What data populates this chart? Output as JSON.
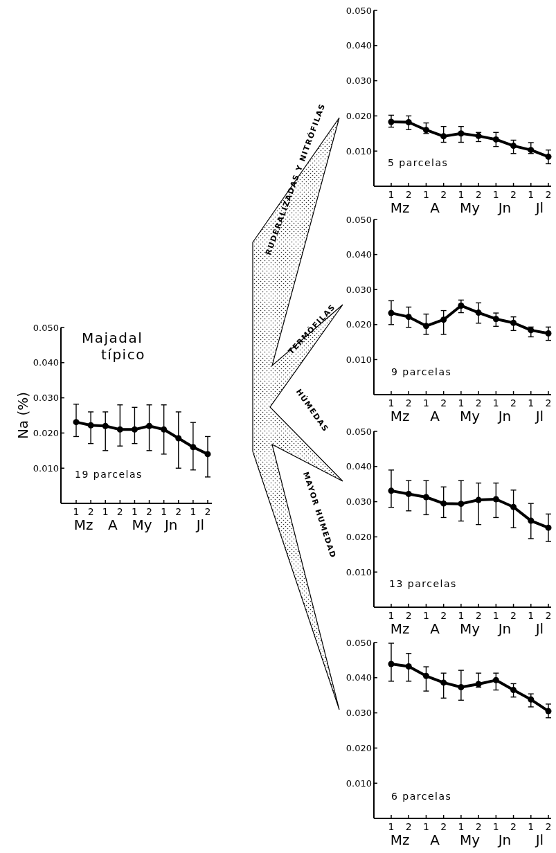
{
  "chart_data": [
    {
      "type": "line",
      "title": "Majadal típico",
      "ylabel": "Na (%)",
      "categories": [
        "1",
        "2",
        "1",
        "2",
        "1",
        "2",
        "1",
        "2",
        "1",
        "2"
      ],
      "ylim": [
        0,
        0.05
      ],
      "yticks": [
        {
          "value": 0.01,
          "label": "0.010"
        },
        {
          "value": 0.02,
          "label": "0.020"
        },
        {
          "value": 0.03,
          "label": "0.030"
        },
        {
          "value": 0.04,
          "label": "0.040"
        },
        {
          "value": 0.05,
          "label": "0.050"
        }
      ],
      "marker": "circle",
      "annotations": [
        "19 parcelas",
        "Mz",
        "A",
        "My",
        "Jn",
        "Jl"
      ],
      "series": [
        {
          "color": "#000000",
          "values": [
            0.0231,
            0.0222,
            0.022,
            0.021,
            0.021,
            0.022,
            0.021,
            0.0185,
            0.016,
            0.014
          ],
          "errors": [
            [
              0.019,
              0.0282
            ],
            [
              0.017,
              0.026
            ],
            [
              0.015,
              0.026
            ],
            [
              0.0163,
              0.028
            ],
            [
              0.017,
              0.0273
            ],
            [
              0.015,
              0.028
            ],
            [
              0.014,
              0.028
            ],
            [
              0.01,
              0.026
            ],
            [
              0.0095,
              0.023
            ],
            [
              0.0075,
              0.019
            ]
          ]
        }
      ]
    },
    {
      "type": "line",
      "title": "RUDERALIZADAS Y NITRÓFILAS",
      "categories": [
        "1",
        "2",
        "1",
        "2",
        "1",
        "2",
        "1",
        "2",
        "1",
        "2"
      ],
      "ylim": [
        0,
        0.05
      ],
      "yticks": [
        {
          "value": 0.01,
          "label": "0.010"
        },
        {
          "value": 0.02,
          "label": "0.020"
        },
        {
          "value": 0.03,
          "label": "0.030"
        },
        {
          "value": 0.04,
          "label": "0.040"
        },
        {
          "value": 0.05,
          "label": "0.050"
        }
      ],
      "marker": "circle",
      "annotations": [
        "5 parcelas",
        "Mz",
        "A",
        "My",
        "Jn",
        "Jl"
      ],
      "series": [
        {
          "color": "#000000",
          "values": [
            0.0183,
            0.0182,
            0.016,
            0.0142,
            0.015,
            0.0143,
            0.0133,
            0.0115,
            0.0103,
            0.0084
          ],
          "errors": [
            [
              0.0168,
              0.0202
            ],
            [
              0.0161,
              0.02
            ],
            [
              0.015,
              0.018
            ],
            [
              0.0125,
              0.017
            ],
            [
              0.0125,
              0.017
            ],
            [
              0.0127,
              0.0153
            ],
            [
              0.0113,
              0.0153
            ],
            [
              0.0093,
              0.0131
            ],
            [
              0.0093,
              0.0124
            ],
            [
              0.0064,
              0.0103
            ]
          ]
        }
      ]
    },
    {
      "type": "line",
      "title": "TERMÓFILAS",
      "categories": [
        "1",
        "2",
        "1",
        "2",
        "1",
        "2",
        "1",
        "2",
        "1",
        "2"
      ],
      "ylim": [
        0,
        0.05
      ],
      "yticks": [
        {
          "value": 0.01,
          "label": "0.010"
        },
        {
          "value": 0.02,
          "label": "0.020"
        },
        {
          "value": 0.03,
          "label": "0.030"
        },
        {
          "value": 0.04,
          "label": "0.040"
        },
        {
          "value": 0.05,
          "label": "0.050"
        }
      ],
      "marker": "circle",
      "annotations": [
        "9 parcelas",
        "Mz",
        "A",
        "My",
        "Jn",
        "Jl"
      ],
      "series": [
        {
          "color": "#000000",
          "values": [
            0.0233,
            0.0222,
            0.0196,
            0.0214,
            0.0254,
            0.0234,
            0.0216,
            0.0205,
            0.0184,
            0.0175
          ],
          "errors": [
            [
              0.02,
              0.0268
            ],
            [
              0.0192,
              0.025
            ],
            [
              0.0172,
              0.023
            ],
            [
              0.0172,
              0.024
            ],
            [
              0.0234,
              0.027
            ],
            [
              0.0204,
              0.0262
            ],
            [
              0.0195,
              0.0233
            ],
            [
              0.0183,
              0.0222
            ],
            [
              0.0165,
              0.0193
            ],
            [
              0.0155,
              0.0193
            ]
          ]
        }
      ]
    },
    {
      "type": "line",
      "title": "HÚMEDAS",
      "categories": [
        "1",
        "2",
        "1",
        "2",
        "1",
        "2",
        "1",
        "2",
        "1",
        "2"
      ],
      "ylim": [
        0,
        0.05
      ],
      "yticks": [
        {
          "value": 0.01,
          "label": "0.010"
        },
        {
          "value": 0.02,
          "label": "0.020"
        },
        {
          "value": 0.03,
          "label": "0.030"
        },
        {
          "value": 0.04,
          "label": "0.040"
        },
        {
          "value": 0.05,
          "label": "0.050"
        }
      ],
      "marker": "circle",
      "annotations": [
        "13 parcelas",
        "Mz",
        "A",
        "My",
        "Jn",
        "Jl"
      ],
      "series": [
        {
          "color": "#000000",
          "values": [
            0.0331,
            0.0322,
            0.0313,
            0.0295,
            0.0294,
            0.0305,
            0.0307,
            0.0285,
            0.0246,
            0.0226
          ],
          "errors": [
            [
              0.0284,
              0.039
            ],
            [
              0.0274,
              0.036
            ],
            [
              0.0263,
              0.036
            ],
            [
              0.0255,
              0.0342
            ],
            [
              0.0245,
              0.036
            ],
            [
              0.0235,
              0.0353
            ],
            [
              0.0255,
              0.0353
            ],
            [
              0.0226,
              0.0333
            ],
            [
              0.0195,
              0.0295
            ],
            [
              0.0187,
              0.0265
            ]
          ]
        }
      ]
    },
    {
      "type": "line",
      "title": "MAYOR HUMEDAD",
      "categories": [
        "1",
        "2",
        "1",
        "2",
        "1",
        "2",
        "1",
        "2",
        "1",
        "2"
      ],
      "ylim": [
        0,
        0.05
      ],
      "yticks": [
        {
          "value": 0.01,
          "label": "0.010"
        },
        {
          "value": 0.02,
          "label": "0.020"
        },
        {
          "value": 0.03,
          "label": "0.030"
        },
        {
          "value": 0.04,
          "label": "0.040"
        },
        {
          "value": 0.05,
          "label": "0.050"
        }
      ],
      "marker": "circle",
      "annotations": [
        "6 parcelas",
        "Mz",
        "A",
        "My",
        "Jn",
        "Jl"
      ],
      "series": [
        {
          "color": "#000000",
          "values": [
            0.0439,
            0.0432,
            0.0405,
            0.0386,
            0.0373,
            0.0382,
            0.0393,
            0.0365,
            0.0338,
            0.0305
          ],
          "errors": [
            [
              0.039,
              0.0498
            ],
            [
              0.039,
              0.0469
            ],
            [
              0.0362,
              0.0431
            ],
            [
              0.0342,
              0.0413
            ],
            [
              0.0336,
              0.0421
            ],
            [
              0.0373,
              0.0413
            ],
            [
              0.0365,
              0.0413
            ],
            [
              0.0345,
              0.0383
            ],
            [
              0.0317,
              0.0354
            ],
            [
              0.0286,
              0.0325
            ]
          ]
        }
      ]
    }
  ]
}
